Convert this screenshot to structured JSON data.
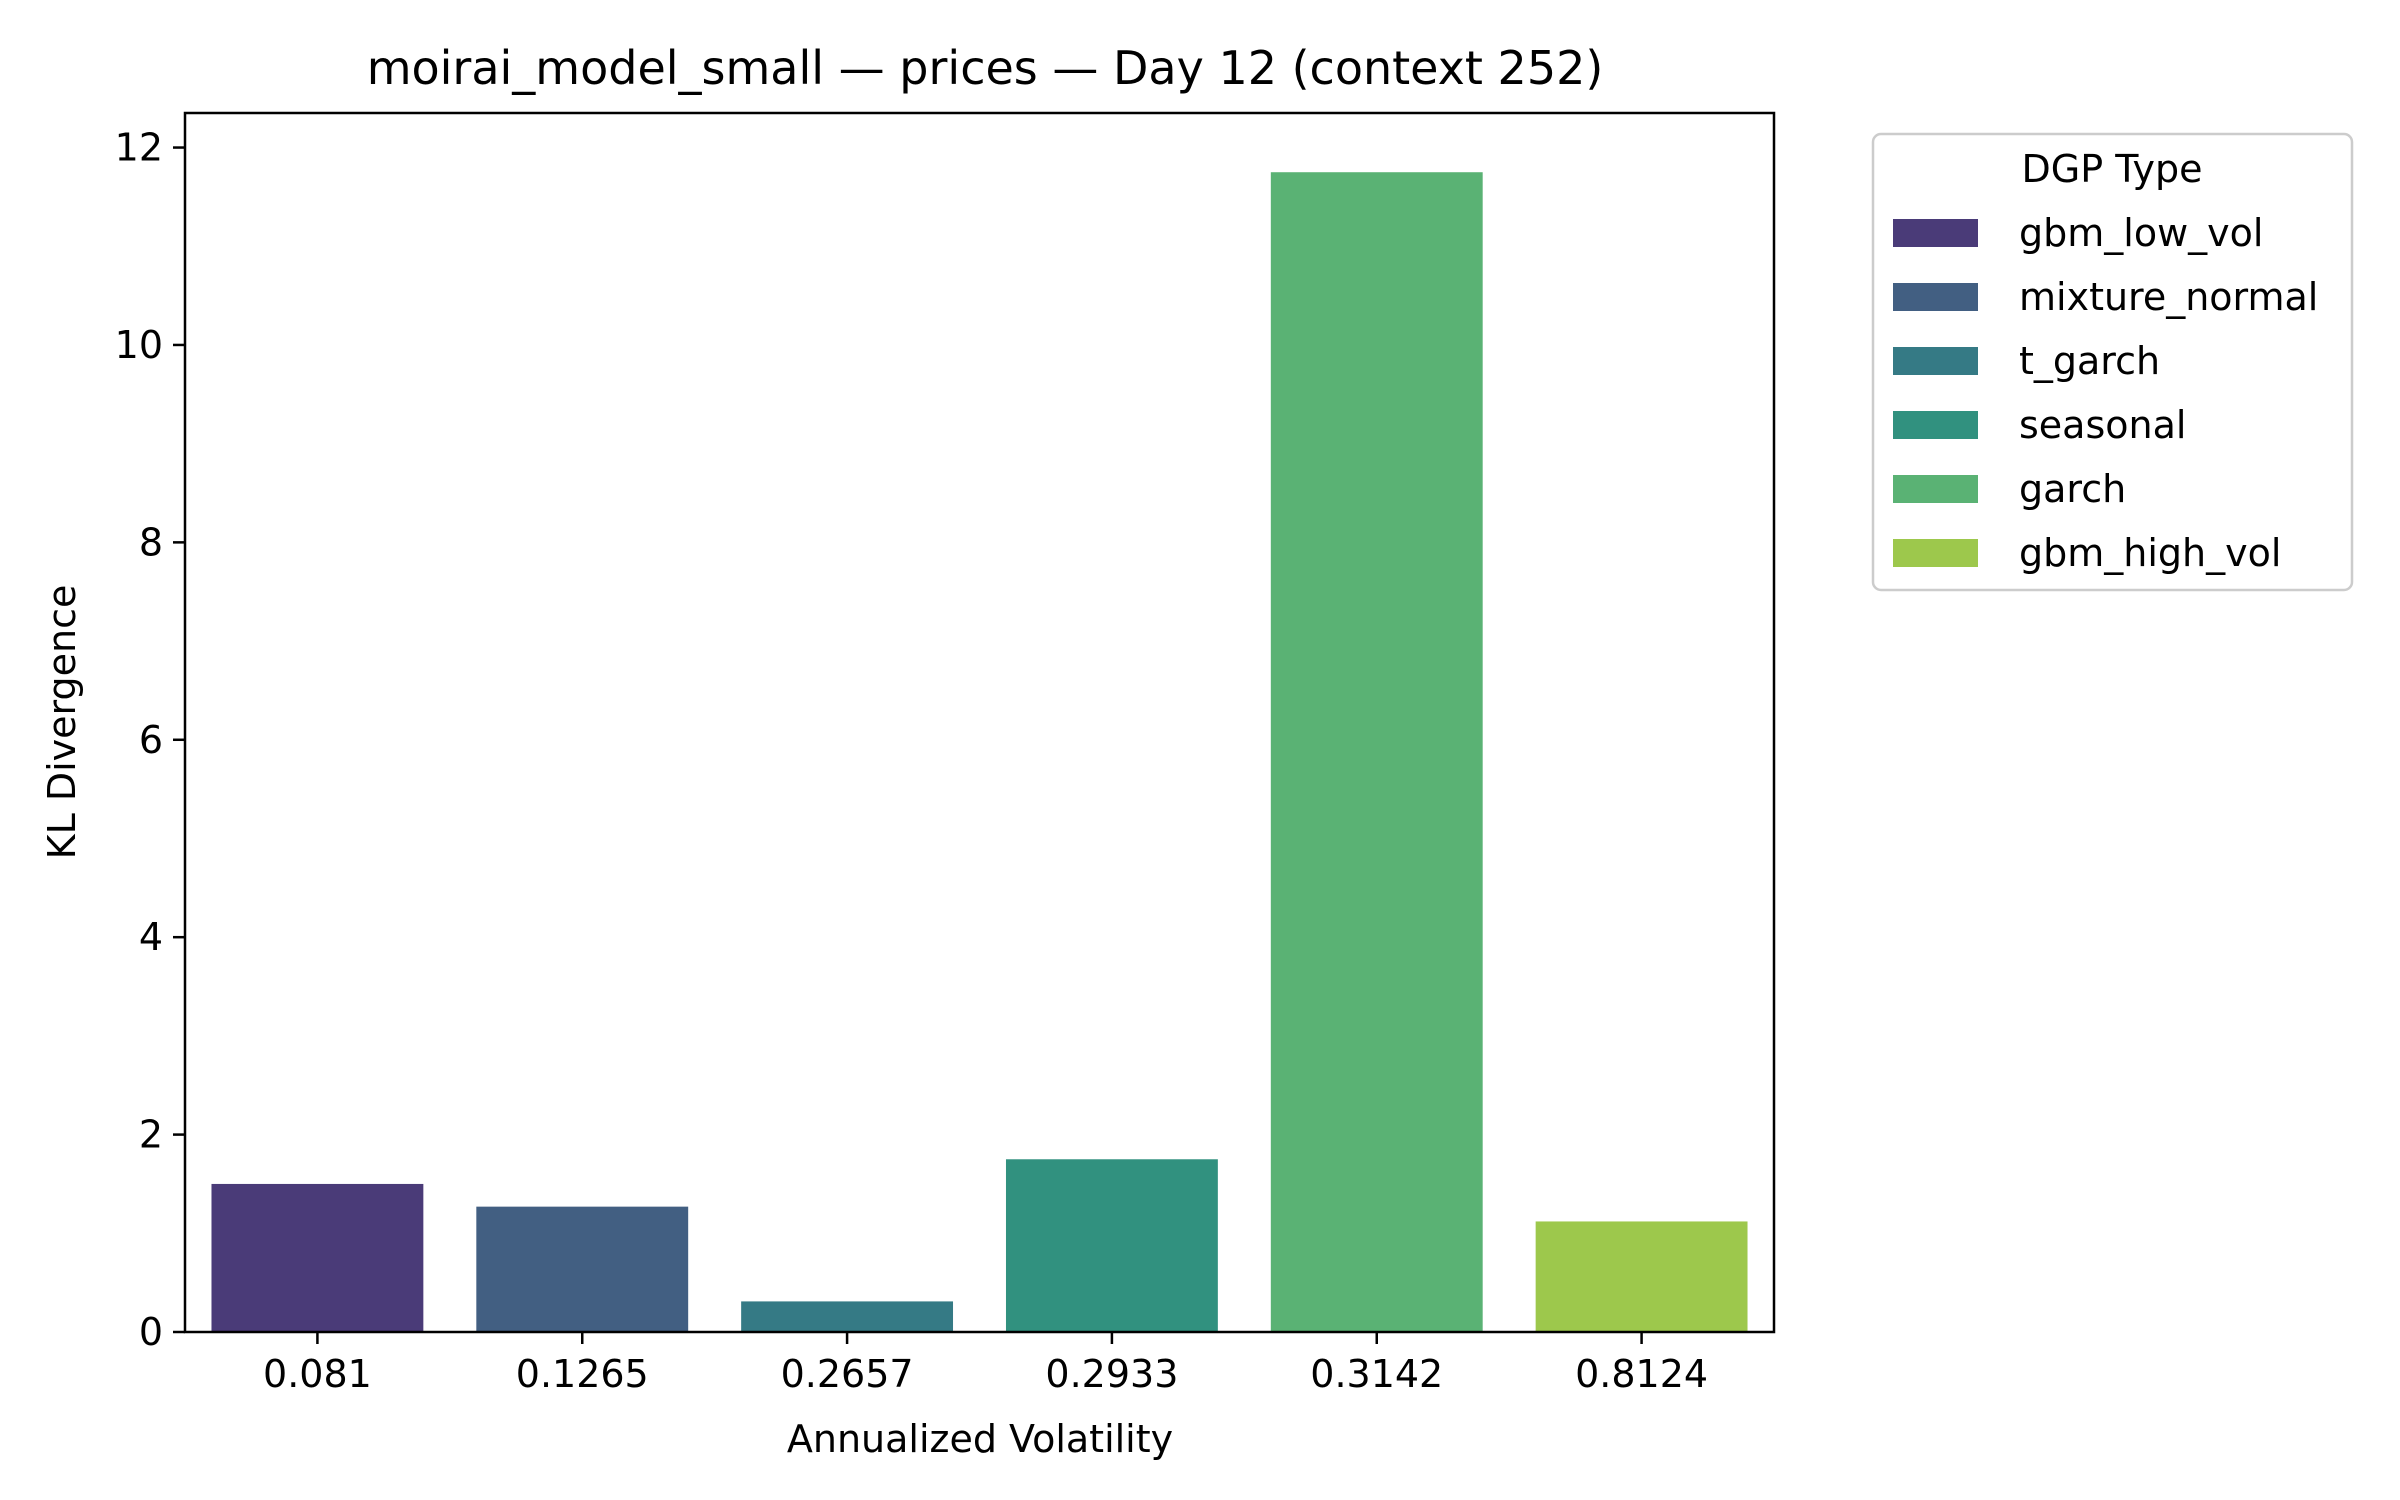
{
  "chart_data": {
    "type": "bar",
    "title": "moirai_model_small — prices — Day 12 (context 252)",
    "xlabel": "Annualized Volatility",
    "ylabel": "KL Divergence",
    "categories": [
      "0.081",
      "0.1265",
      "0.2657",
      "0.2933",
      "0.3142",
      "0.8124"
    ],
    "values": [
      1.5,
      1.27,
      0.31,
      1.75,
      11.75,
      1.12
    ],
    "dgp_types": [
      "gbm_low_vol",
      "mixture_normal",
      "t_garch",
      "seasonal",
      "garch",
      "gbm_high_vol"
    ],
    "colors": [
      "#4a3b78",
      "#425f82",
      "#357a85",
      "#31917f",
      "#5ab274",
      "#9dc84c"
    ],
    "ylim": [
      0,
      12.35
    ],
    "yticks": [
      0,
      2,
      4,
      6,
      8,
      10,
      12
    ],
    "grid": false,
    "legend": {
      "title": "DGP Type",
      "placement": "outside-right-top"
    }
  }
}
